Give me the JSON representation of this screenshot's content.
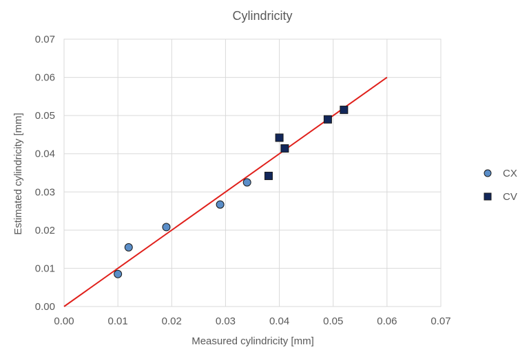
{
  "chart_data": {
    "type": "scatter",
    "title": "Cylindricity",
    "xlabel": "Measured cylindricity [mm]",
    "ylabel": "Estimated cylindricity [mm]",
    "xlim": [
      0,
      0.07
    ],
    "ylim": [
      0,
      0.07
    ],
    "x_ticks": [
      "0.00",
      "0.01",
      "0.02",
      "0.03",
      "0.04",
      "0.05",
      "0.06",
      "0.07"
    ],
    "y_ticks": [
      "0.00",
      "0.01",
      "0.02",
      "0.03",
      "0.04",
      "0.05",
      "0.06",
      "0.07"
    ],
    "grid": true,
    "legend_position": "right",
    "series": [
      {
        "name": "CX",
        "marker": "circle",
        "color": "#5B8EC8",
        "edge_color": "#1a1a1a",
        "points": [
          {
            "x": 0.01,
            "y": 0.0085
          },
          {
            "x": 0.012,
            "y": 0.0155
          },
          {
            "x": 0.019,
            "y": 0.0208
          },
          {
            "x": 0.029,
            "y": 0.0267
          },
          {
            "x": 0.034,
            "y": 0.0325
          }
        ]
      },
      {
        "name": "CV",
        "marker": "square",
        "color": "#12275A",
        "edge_color": "#1a1a1a",
        "points": [
          {
            "x": 0.038,
            "y": 0.0342
          },
          {
            "x": 0.04,
            "y": 0.0442
          },
          {
            "x": 0.041,
            "y": 0.0414
          },
          {
            "x": 0.049,
            "y": 0.049
          },
          {
            "x": 0.052,
            "y": 0.0515
          }
        ]
      }
    ],
    "reference_line": {
      "color": "#E0201B",
      "points": [
        {
          "x": 0,
          "y": 0
        },
        {
          "x": 0.06,
          "y": 0.06
        }
      ]
    }
  }
}
